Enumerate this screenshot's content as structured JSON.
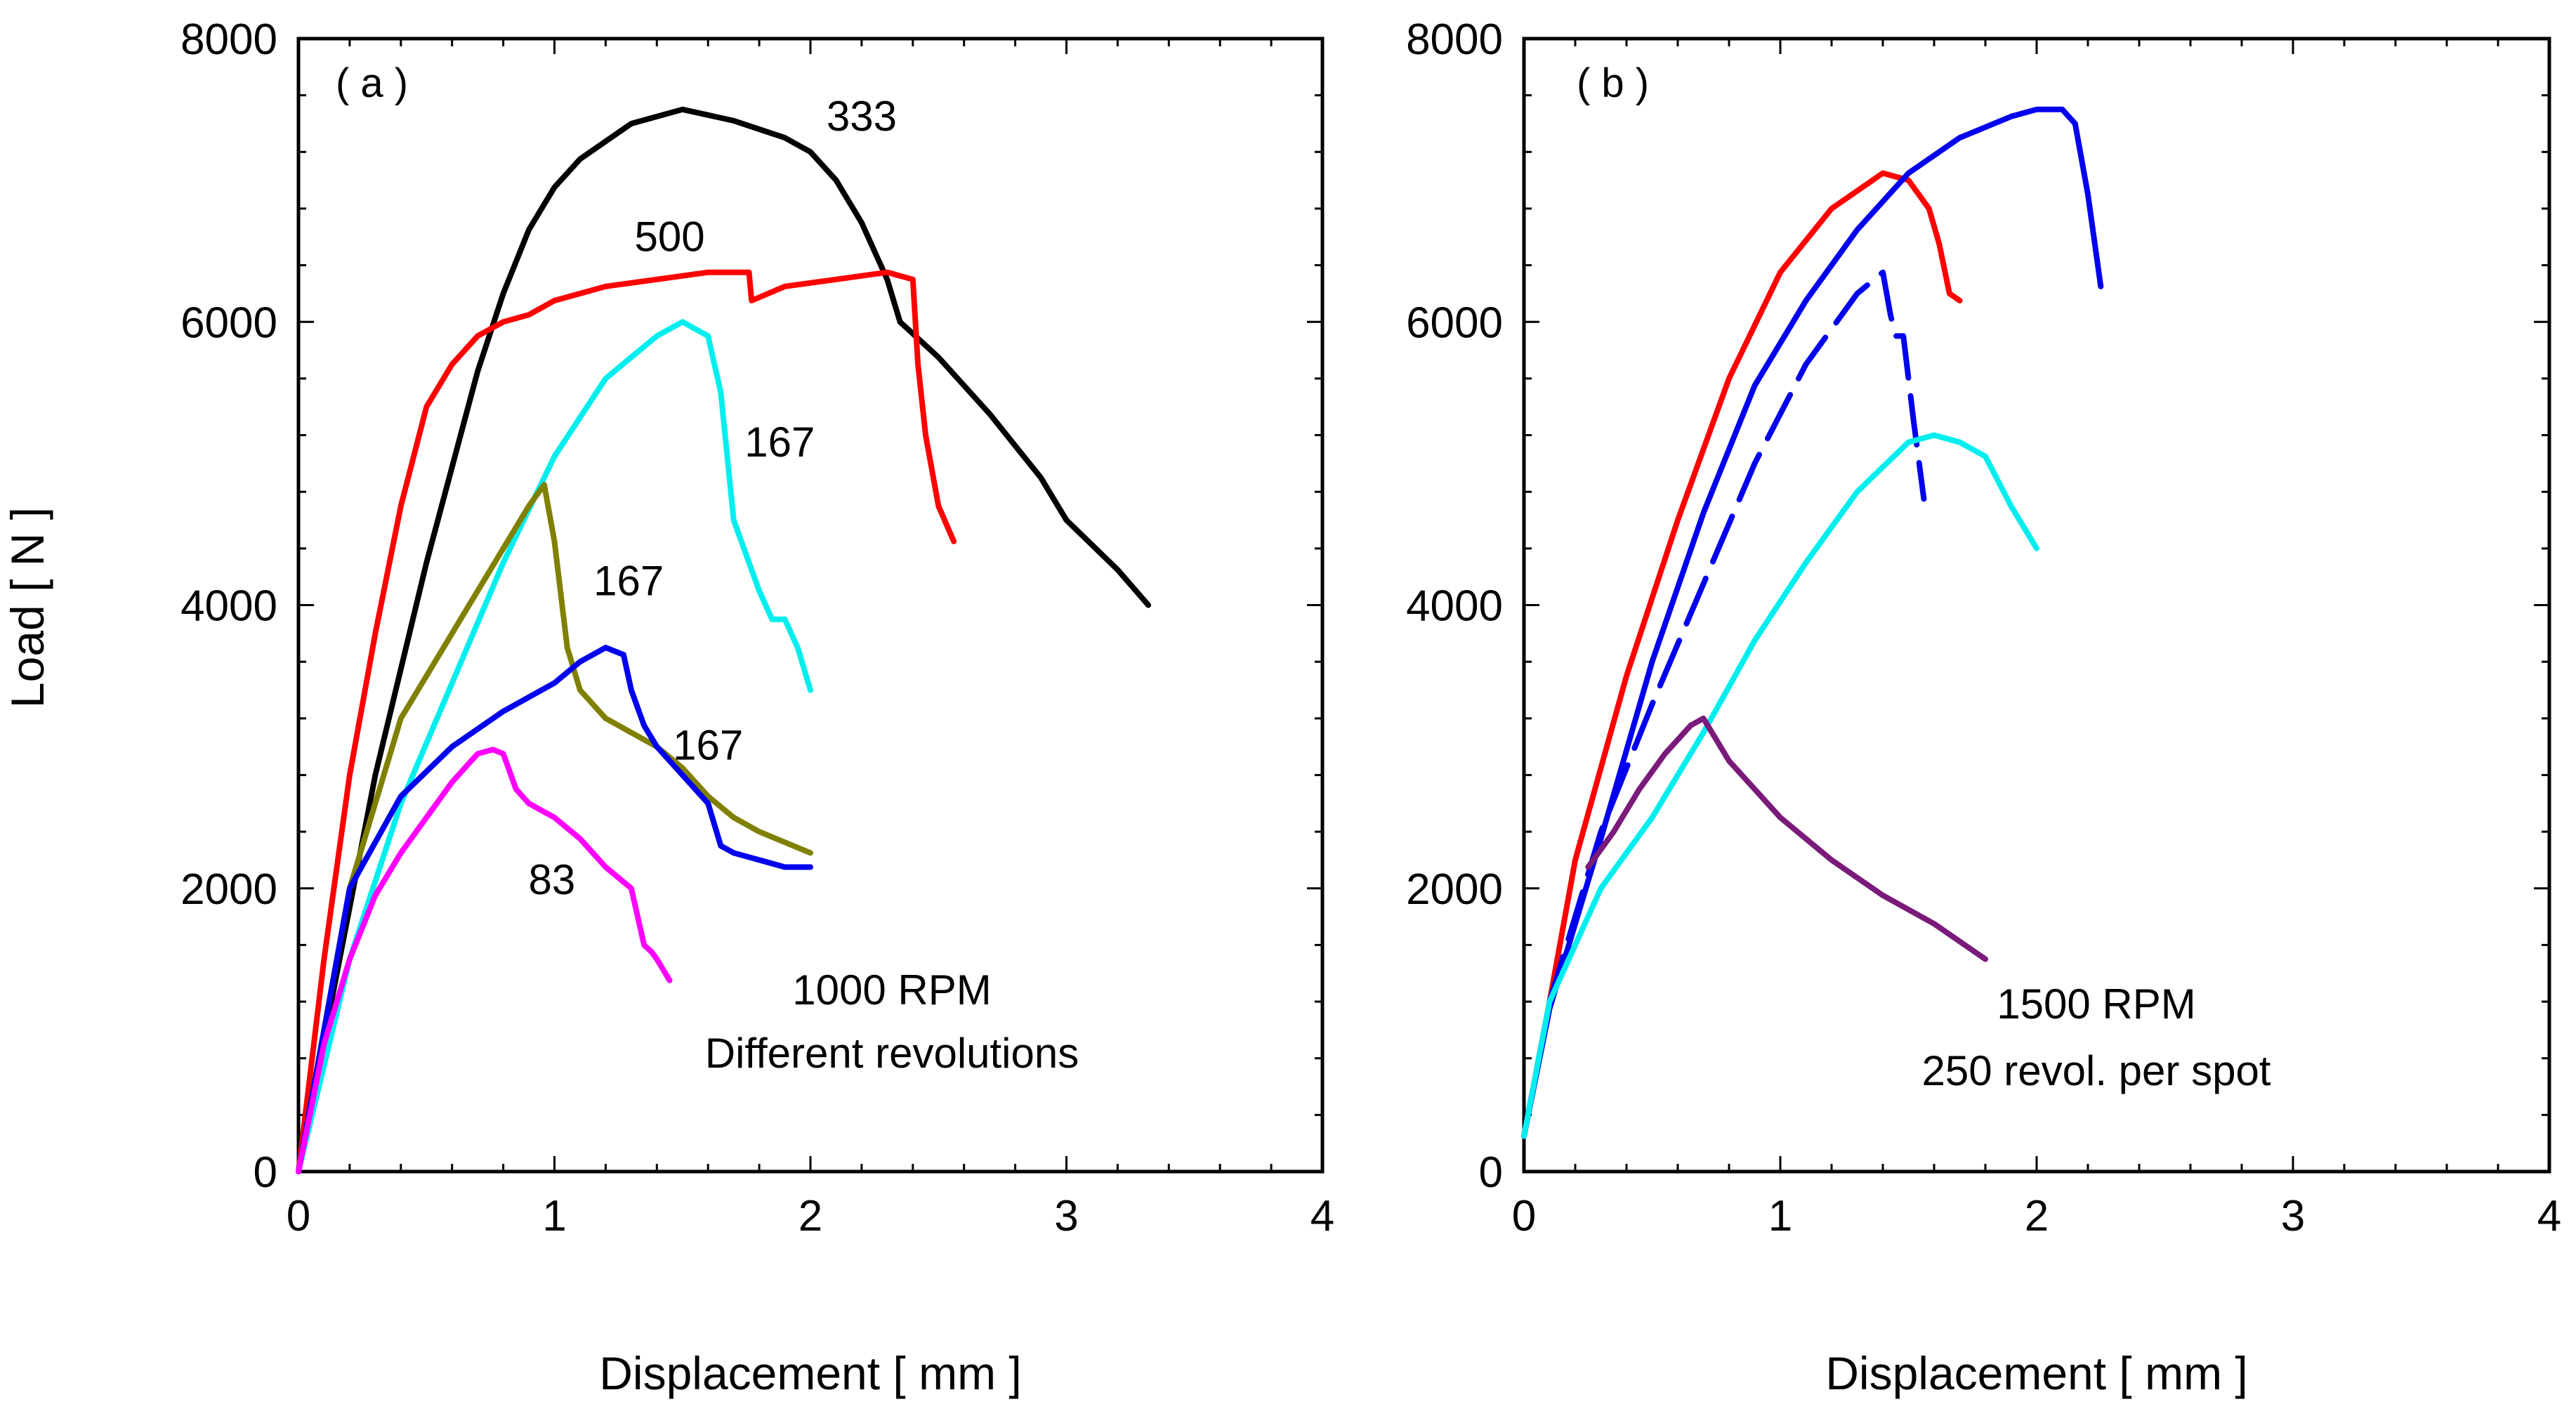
{
  "figure": {
    "ylabel": "Load  [ N ]",
    "xlabel": "Displacement  [ mm ]"
  },
  "chart_data": [
    {
      "type": "line",
      "panel_label": "( a )",
      "xlabel": "Displacement  [ mm ]",
      "ylabel": "Load  [ N ]",
      "xlim": [
        0,
        4
      ],
      "ylim": [
        0,
        8000
      ],
      "xticks": [
        0,
        1,
        2,
        3,
        4
      ],
      "yticks": [
        0,
        2000,
        4000,
        6000,
        8000
      ],
      "xtick_labels": [
        "0",
        "1",
        "2",
        "3",
        "4"
      ],
      "ytick_labels": [
        "0",
        "2000",
        "4000",
        "6000",
        "8000"
      ],
      "grid": false,
      "annotations": [
        "1000 RPM",
        "Different revolutions"
      ],
      "series": [
        {
          "name": "333",
          "color": "#000000",
          "dashed": false,
          "x": [
            0,
            0.3,
            0.5,
            0.7,
            0.8,
            0.9,
            1.0,
            1.1,
            1.3,
            1.5,
            1.7,
            1.9,
            2.0,
            2.1,
            2.2,
            2.3,
            2.35,
            2.5,
            2.7,
            2.9,
            3.0,
            3.2,
            3.32
          ],
          "y": [
            0,
            2800,
            4300,
            5650,
            6200,
            6650,
            6950,
            7150,
            7400,
            7500,
            7420,
            7300,
            7200,
            7000,
            6700,
            6300,
            6000,
            5750,
            5350,
            4900,
            4600,
            4250,
            4000
          ]
        },
        {
          "name": "500",
          "color": "#ff0000",
          "dashed": false,
          "x": [
            0,
            0.1,
            0.2,
            0.3,
            0.4,
            0.5,
            0.6,
            0.7,
            0.8,
            0.9,
            1.0,
            1.2,
            1.4,
            1.6,
            1.76,
            1.77,
            1.9,
            2.1,
            2.3,
            2.4,
            2.42,
            2.45,
            2.5,
            2.56
          ],
          "y": [
            0,
            1500,
            2800,
            3800,
            4700,
            5400,
            5700,
            5900,
            6000,
            6050,
            6150,
            6250,
            6300,
            6350,
            6350,
            6150,
            6250,
            6300,
            6350,
            6300,
            5700,
            5200,
            4700,
            4450
          ]
        },
        {
          "name": "167",
          "color": "#00eeee",
          "dashed": false,
          "x": [
            0,
            0.2,
            0.4,
            0.6,
            0.8,
            1.0,
            1.2,
            1.4,
            1.5,
            1.6,
            1.65,
            1.7,
            1.8,
            1.85,
            1.9,
            1.95,
            2.0
          ],
          "y": [
            0,
            1500,
            2600,
            3450,
            4300,
            5050,
            5600,
            5900,
            6000,
            5900,
            5500,
            4600,
            4100,
            3900,
            3900,
            3700,
            3400
          ]
        },
        {
          "name": "167",
          "color": "#808000",
          "dashed": false,
          "x": [
            0,
            0.2,
            0.4,
            0.6,
            0.8,
            0.9,
            0.96,
            1.0,
            1.05,
            1.1,
            1.2,
            1.3,
            1.4,
            1.5,
            1.6,
            1.7,
            1.8,
            2.0
          ],
          "y": [
            0,
            2000,
            3200,
            3800,
            4400,
            4700,
            4850,
            4450,
            3700,
            3400,
            3200,
            3100,
            3000,
            2850,
            2650,
            2500,
            2400,
            2250
          ]
        },
        {
          "name": "167",
          "color": "#0000ee",
          "dashed": false,
          "x": [
            0,
            0.2,
            0.4,
            0.6,
            0.8,
            1.0,
            1.1,
            1.2,
            1.27,
            1.3,
            1.35,
            1.4,
            1.5,
            1.6,
            1.65,
            1.7,
            1.8,
            1.9,
            2.0
          ],
          "y": [
            0,
            2000,
            2650,
            3000,
            3250,
            3450,
            3600,
            3700,
            3650,
            3400,
            3150,
            3000,
            2800,
            2600,
            2300,
            2250,
            2200,
            2150,
            2150
          ]
        },
        {
          "name": "83",
          "color": "#ff00ff",
          "dashed": false,
          "x": [
            0,
            0.1,
            0.2,
            0.3,
            0.4,
            0.5,
            0.6,
            0.7,
            0.76,
            0.8,
            0.85,
            0.9,
            1.0,
            1.1,
            1.2,
            1.3,
            1.35,
            1.38,
            1.4,
            1.45
          ],
          "y": [
            0,
            900,
            1500,
            1950,
            2250,
            2500,
            2750,
            2950,
            2980,
            2950,
            2700,
            2600,
            2500,
            2350,
            2150,
            2000,
            1600,
            1550,
            1500,
            1350
          ]
        }
      ],
      "labels": [
        {
          "text": "333",
          "x": 2.2,
          "y": 7350
        },
        {
          "text": "500",
          "x": 1.45,
          "y": 6500
        },
        {
          "text": "167",
          "x": 1.88,
          "y": 5050
        },
        {
          "text": "167",
          "x": 1.29,
          "y": 4070
        },
        {
          "text": "167",
          "x": 1.6,
          "y": 2910
        },
        {
          "text": "83",
          "x": 0.99,
          "y": 1960
        }
      ]
    },
    {
      "type": "line",
      "panel_label": "( b )",
      "xlabel": "Displacement  [ mm ]",
      "ylabel": "",
      "xlim": [
        0,
        4
      ],
      "ylim": [
        0,
        8000
      ],
      "xticks": [
        0,
        1,
        2,
        3,
        4
      ],
      "yticks": [
        0,
        2000,
        4000,
        6000,
        8000
      ],
      "xtick_labels": [
        "0",
        "1",
        "2",
        "3",
        "4"
      ],
      "ytick_labels": [
        "0",
        "2000",
        "4000",
        "6000",
        "8000"
      ],
      "grid": false,
      "annotations": [
        "1500 RPM",
        "250 revol.  per spot"
      ],
      "series": [
        {
          "name": "red",
          "color": "#ff0000",
          "dashed": false,
          "x": [
            0,
            0.1,
            0.2,
            0.4,
            0.6,
            0.8,
            1.0,
            1.2,
            1.4,
            1.5,
            1.58,
            1.62,
            1.66,
            1.7
          ],
          "y": [
            250,
            1200,
            2200,
            3500,
            4600,
            5600,
            6350,
            6800,
            7050,
            7000,
            6800,
            6550,
            6200,
            6150
          ]
        },
        {
          "name": "blue",
          "color": "#0000ee",
          "dashed": false,
          "x": [
            0,
            0.1,
            0.3,
            0.5,
            0.7,
            0.9,
            1.1,
            1.3,
            1.5,
            1.7,
            1.9,
            2.0,
            2.1,
            2.15,
            2.2,
            2.25
          ],
          "y": [
            250,
            1150,
            2350,
            3600,
            4650,
            5550,
            6150,
            6650,
            7050,
            7300,
            7450,
            7500,
            7500,
            7400,
            6900,
            6250
          ]
        },
        {
          "name": "blue-dashed",
          "color": "#0000ee",
          "dashed": true,
          "x": [
            0,
            0.1,
            0.3,
            0.5,
            0.7,
            0.9,
            1.1,
            1.3,
            1.4,
            1.43,
            1.45,
            1.48,
            1.5,
            1.52,
            1.56
          ],
          "y": [
            250,
            1200,
            2400,
            3300,
            4150,
            5000,
            5700,
            6200,
            6350,
            6050,
            5900,
            5900,
            5600,
            5300,
            4750
          ]
        },
        {
          "name": "cyan",
          "color": "#00eeee",
          "dashed": false,
          "x": [
            0,
            0.1,
            0.3,
            0.5,
            0.7,
            0.9,
            1.1,
            1.3,
            1.5,
            1.6,
            1.7,
            1.8,
            1.9,
            2.0
          ],
          "y": [
            250,
            1200,
            2000,
            2500,
            3100,
            3750,
            4300,
            4800,
            5150,
            5200,
            5150,
            5050,
            4700,
            4400
          ]
        },
        {
          "name": "purple",
          "color": "#7a1a7a",
          "dashed": false,
          "x": [
            0.25,
            0.35,
            0.45,
            0.55,
            0.65,
            0.7,
            0.75,
            0.8,
            0.9,
            1.0,
            1.2,
            1.4,
            1.6,
            1.8
          ],
          "y": [
            2150,
            2400,
            2700,
            2950,
            3150,
            3200,
            3050,
            2900,
            2700,
            2500,
            2200,
            1950,
            1750,
            1500
          ]
        }
      ],
      "labels": []
    }
  ]
}
